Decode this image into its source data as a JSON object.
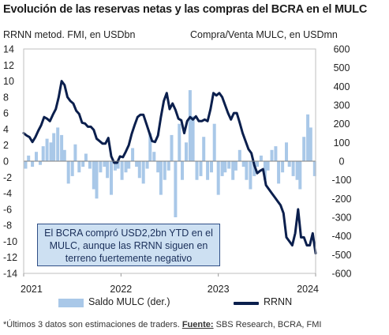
{
  "title": "Evolución de las reservas netas y las compras del BCRA en el MULC",
  "left_axis_caption": "RRNN metod. FMI, en USDbn",
  "right_axis_caption": "Compra/Venta MULC, en USDmn",
  "annotation": {
    "line1": "El BCRA compró USD2,2bn YTD en el",
    "line2": "MULC, aunque las RRNN siguen en",
    "line3": "terreno fuertemente negativo"
  },
  "legend": {
    "bars": "Saldo MULC (der.)",
    "line": "RRNN"
  },
  "footnote": {
    "prefix": "*Últimos 3 datos son estimaciones de traders. ",
    "source_label": "Fuente:",
    "source": " SBS Research, BCRA, FMI"
  },
  "colors": {
    "bars": "#a9c8e8",
    "line": "#0b1f4d",
    "annotation_fill": "#cde0f2",
    "annotation_border": "#2f4e86"
  },
  "chart_data": {
    "type": "bar+line",
    "x_range": [
      2021.0,
      2024.0
    ],
    "x_ticks": [
      {
        "v": 2021,
        "label": "2021"
      },
      {
        "v": 2022,
        "label": "2022"
      },
      {
        "v": 2023,
        "label": "2023"
      },
      {
        "v": 2024,
        "label": "2024"
      }
    ],
    "left_axis": {
      "label": "RRNN metod. FMI, en USDbn",
      "ylim": [
        -14,
        14
      ],
      "ticks": [
        -14,
        -12,
        -10,
        -8,
        -6,
        -4,
        -2,
        0,
        2,
        4,
        6,
        8,
        10,
        12,
        14
      ]
    },
    "right_axis": {
      "label": "Compra/Venta MULC, en USDmn",
      "ylim": [
        -600,
        600
      ],
      "ticks": [
        -600,
        -500,
        -400,
        -300,
        -200,
        -100,
        0,
        100,
        200,
        300,
        400,
        500,
        600
      ]
    },
    "grid": false,
    "series": [
      {
        "name": "RRNN",
        "axis": "left",
        "kind": "line",
        "x": [
          2021.0,
          2021.03,
          2021.06,
          2021.09,
          2021.12,
          2021.15,
          2021.18,
          2021.21,
          2021.24,
          2021.27,
          2021.3,
          2021.33,
          2021.36,
          2021.39,
          2021.42,
          2021.45,
          2021.48,
          2021.51,
          2021.54,
          2021.57,
          2021.6,
          2021.63,
          2021.66,
          2021.69,
          2021.72,
          2021.75,
          2021.78,
          2021.81,
          2021.84,
          2021.87,
          2021.9,
          2021.93,
          2021.96,
          2021.99,
          2022.02,
          2022.05,
          2022.08,
          2022.11,
          2022.14,
          2022.17,
          2022.2,
          2022.23,
          2022.26,
          2022.29,
          2022.32,
          2022.35,
          2022.38,
          2022.41,
          2022.44,
          2022.47,
          2022.5,
          2022.53,
          2022.56,
          2022.59,
          2022.62,
          2022.65,
          2022.68,
          2022.71,
          2022.74,
          2022.77,
          2022.8,
          2022.83,
          2022.86,
          2022.89,
          2022.92,
          2022.95,
          2022.98,
          2023.01,
          2023.04,
          2023.07,
          2023.1,
          2023.13,
          2023.16,
          2023.19,
          2023.22,
          2023.25,
          2023.28,
          2023.31,
          2023.34,
          2023.37,
          2023.4,
          2023.43,
          2023.46,
          2023.49,
          2023.52,
          2023.55,
          2023.58,
          2023.61,
          2023.64,
          2023.67,
          2023.7,
          2023.73,
          2023.76,
          2023.79,
          2023.82,
          2023.85,
          2023.88,
          2023.91,
          2023.94,
          2023.97,
          2024.0
        ],
        "y": [
          3.5,
          3.2,
          3.0,
          2.4,
          3.0,
          3.8,
          4.5,
          5.5,
          5.3,
          5.0,
          5.8,
          6.5,
          8.0,
          10.0,
          9.5,
          8.0,
          7.5,
          7.2,
          6.3,
          5.9,
          4.8,
          4.7,
          4.3,
          4.3,
          3.9,
          2.8,
          2.5,
          2.2,
          2.2,
          2.9,
          0.6,
          -0.2,
          -0.2,
          0.6,
          0.5,
          1.2,
          2.0,
          3.4,
          4.5,
          5.5,
          5.8,
          5.8,
          4.7,
          3.6,
          2.5,
          2.4,
          3.2,
          5.5,
          7.5,
          8.5,
          6.5,
          7.2,
          6.4,
          5.3,
          5.1,
          3.5,
          5.0,
          5.5,
          5.2,
          5.6,
          5.0,
          5.0,
          5.2,
          5.0,
          6.5,
          8.5,
          8.2,
          8.5,
          8.0,
          7.0,
          6.0,
          5.2,
          6.0,
          6.0,
          4.8,
          3.5,
          2.5,
          1.5,
          1.0,
          -0.5,
          -1.5,
          -1.2,
          -1.0,
          -3.0,
          -3.5,
          -4.0,
          -4.5,
          -5.0,
          -5.5,
          -6.5,
          -9.5,
          -10.0,
          -10.5,
          -9.0,
          -6.0,
          -9.5,
          -9.5,
          -10.5,
          -10.5,
          -9.0,
          -11.5
        ]
      },
      {
        "name": "Saldo MULC (der.)",
        "axis": "right",
        "kind": "bar",
        "x": [
          2021.02,
          2021.05,
          2021.09,
          2021.13,
          2021.17,
          2021.2,
          2021.24,
          2021.28,
          2021.31,
          2021.35,
          2021.39,
          2021.42,
          2021.46,
          2021.5,
          2021.53,
          2021.57,
          2021.61,
          2021.64,
          2021.68,
          2021.72,
          2021.75,
          2021.79,
          2021.83,
          2021.86,
          2021.9,
          2021.94,
          2021.97,
          2022.01,
          2022.05,
          2022.08,
          2022.12,
          2022.16,
          2022.19,
          2022.23,
          2022.27,
          2022.3,
          2022.34,
          2022.38,
          2022.41,
          2022.45,
          2022.49,
          2022.52,
          2022.56,
          2022.6,
          2022.63,
          2022.67,
          2022.71,
          2022.74,
          2022.78,
          2022.82,
          2022.85,
          2022.89,
          2022.93,
          2022.96,
          2023.0,
          2023.04,
          2023.07,
          2023.11,
          2023.15,
          2023.18,
          2023.22,
          2023.26,
          2023.29,
          2023.33,
          2023.37,
          2023.4,
          2023.44,
          2023.48,
          2023.51,
          2023.55,
          2023.59,
          2023.62,
          2023.66,
          2023.7,
          2023.73,
          2023.77,
          2023.81,
          2023.84,
          2023.88,
          2023.92,
          2023.95,
          2023.99
        ],
        "y": [
          -40,
          30,
          -30,
          50,
          -20,
          80,
          120,
          100,
          150,
          180,
          140,
          60,
          -120,
          -80,
          90,
          -60,
          -30,
          40,
          -40,
          -150,
          -200,
          -60,
          -30,
          -90,
          -180,
          -50,
          -40,
          -100,
          -60,
          -40,
          70,
          -30,
          -90,
          -120,
          -40,
          150,
          50,
          -60,
          -180,
          -100,
          -50,
          140,
          -300,
          200,
          -100,
          100,
          380,
          240,
          -100,
          -80,
          130,
          -100,
          -60,
          200,
          -180,
          -80,
          -60,
          -40,
          -100,
          -50,
          60,
          -30,
          -100,
          -150,
          -80,
          -30,
          30,
          -100,
          -50,
          60,
          80,
          -120,
          -60,
          100,
          -30,
          -80,
          -100,
          -150,
          130,
          250,
          180,
          -80
        ]
      }
    ]
  }
}
